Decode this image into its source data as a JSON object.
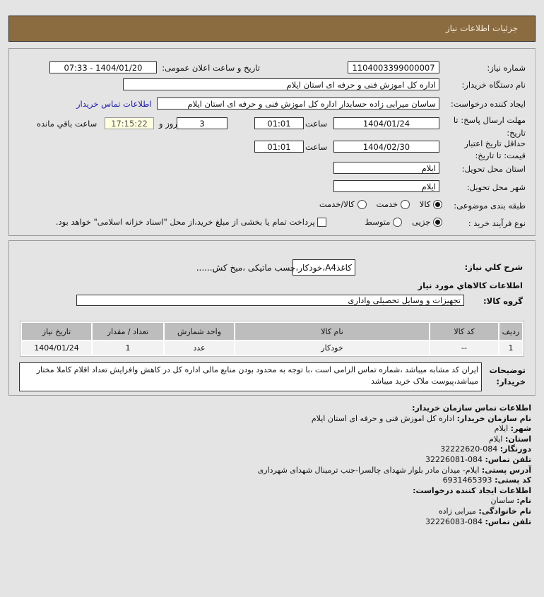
{
  "header": {
    "title": "جزئیات اطلاعات نیاز"
  },
  "form": {
    "need_number_label": "شماره نیاز:",
    "need_number": "1104003399000007",
    "announce_label": "تاریخ و ساعت اعلان عمومی:",
    "announce_value": "1404/01/20 - 07:33",
    "buyer_label": "نام دستگاه خریدار:",
    "buyer_value": "اداره کل اموزش فنی و حرفه ای استان ایلام",
    "creator_label": "ایجاد کننده درخواست:",
    "creator_value": "ساسان میرابی زاده حسابدار اداره کل اموزش فنی و حرفه ای استان ایلام",
    "contact_link": "اطلاعات تماس خریدار",
    "deadline_label_1": "مهلت ارسال پاسخ: تا",
    "deadline_label_2": "تاریخ:",
    "deadline_date": "1404/01/24",
    "time_label": "ساعت",
    "deadline_time": "01:01",
    "days": "3",
    "days_label": "روز و",
    "remaining": "17:15:22",
    "remaining_label": "ساعت باقي مانده",
    "validity_label_1": "حداقل تاریخ اعتبار",
    "validity_label_2": "قیمت: تا تاریخ:",
    "validity_date": "1404/02/30",
    "validity_time": "01:01",
    "province_label": "استان محل تحویل:",
    "province": "ایلام",
    "city_label": "شهر محل تحویل:",
    "city": "ایلام",
    "category_label": "طبقه بندی موضوعی:",
    "category_options": [
      {
        "label": "کالا",
        "selected": true
      },
      {
        "label": "خدمت",
        "selected": false
      },
      {
        "label": "کالا/خدمت",
        "selected": false
      }
    ],
    "process_label": "نوع فرآیند خرید :",
    "process_options": [
      {
        "label": "جزیی",
        "selected": true
      },
      {
        "label": "متوسط",
        "selected": false
      }
    ],
    "payment_note": "پرداخت تمام یا بخشی از مبلغ خرید،از محل \"اسناد خزانه اسلامی\" خواهد بود.",
    "payment_checked": false
  },
  "goods": {
    "desc_label": "شرح کلي نياز:",
    "desc_value": "کاغذA4،خودکار،چسب ماتیکی ،میخ کش......",
    "section_title": "اطلاعات کالاهاي مورد نياز",
    "group_label": "گروه کالا:",
    "group_value": "تجهیزات و وسایل تحصیلی واداری",
    "columns": [
      "ردیف",
      "کد کالا",
      "نام کالا",
      "واحد شمارش",
      "تعداد / مقدار",
      "تاریخ نیاز"
    ],
    "rows": [
      [
        "1",
        "--",
        "خودکار",
        "عدد",
        "1",
        "1404/01/24"
      ]
    ],
    "notes_label_1": "توضیحات",
    "notes_label_2": "خریدار:",
    "notes_value": "ایران کد مشابه میباشد ،شماره تماس الزامی است ،با توجه به محدود بودن منابع مالی اداره کل در کاهش وافزایش تعداد اقلام کاملا مختار میباشد،پیوست ملاک خرید میباشد"
  },
  "contact": {
    "title": "اطلاعات تماس سازمان خریدار:",
    "org_label": "نام سازمان خریدار:",
    "org": "اداره کل اموزش فنی و حرفه ای استان ایلام",
    "city_label": "شهر:",
    "city": "ایلام",
    "province_label": "استان:",
    "province": "ایلام",
    "fax_label": "دورنگار:",
    "fax": "084-32222620",
    "phone_label": "تلفن تماس:",
    "phone": "084-32226081",
    "address_label": "آدرس پستی:",
    "address": "ایلام- میدان مادر بلوار شهدای چالسرا-جنب ترمینال شهدای شهرداری",
    "postal_label": "کد پستی:",
    "postal": "6931465393",
    "creator_title": "اطلاعات ایجاد کننده درخواست:",
    "name_label": "نام:",
    "name": "ساسان",
    "family_label": "نام خانوادگی:",
    "family": "میرابی زاده",
    "creator_phone_label": "تلفن تماس:",
    "creator_phone": "084-32226083"
  }
}
